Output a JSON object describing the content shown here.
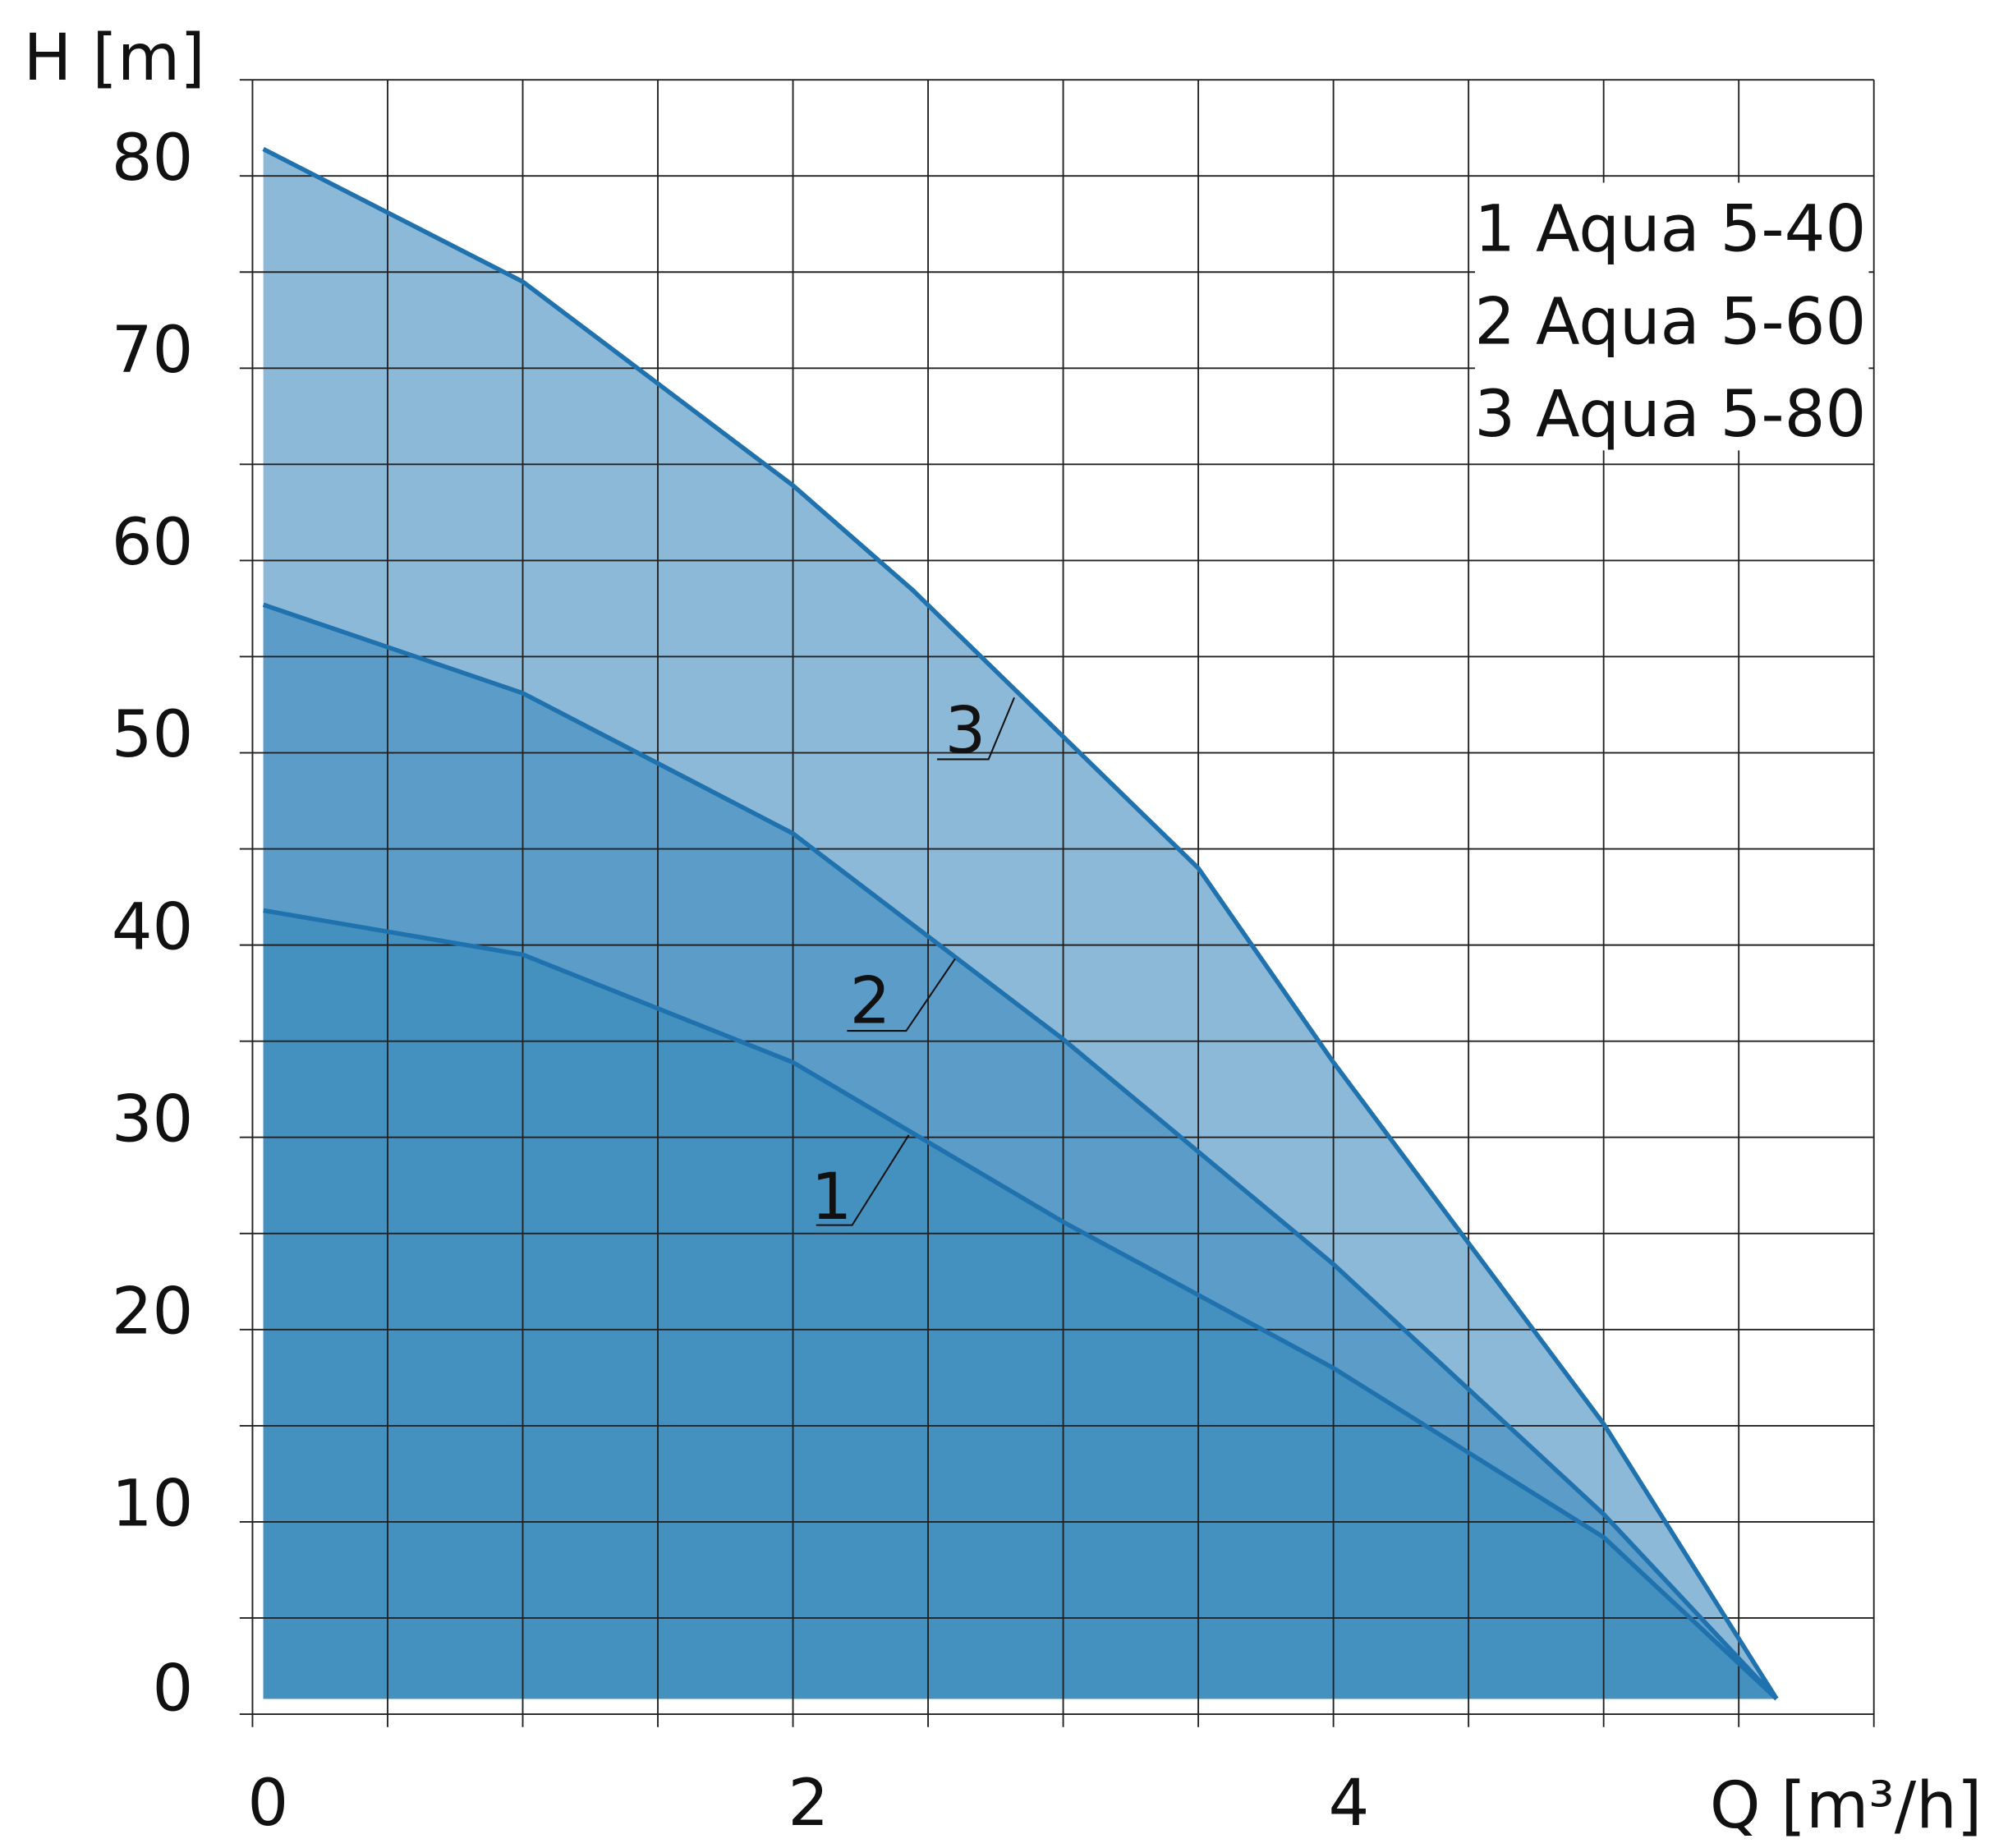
{
  "chart_data": {
    "type": "area",
    "xlabel": "Q [m³/h]",
    "ylabel": "H [m]",
    "xlim": [
      0,
      6
    ],
    "ylim": [
      0,
      85
    ],
    "x_ticks": [
      0,
      2,
      4
    ],
    "y_ticks": [
      0,
      10,
      20,
      30,
      40,
      50,
      60,
      70,
      80
    ],
    "grid": true,
    "legend_position": "top-right",
    "legend": [
      "1 Aqua 5-40",
      "2 Aqua 5-60",
      "3 Aqua 5-80"
    ],
    "colors": {
      "line": "#1f72ad",
      "fill_1": "#4491c0",
      "fill_2": "#5b9dc8",
      "fill_3": "#8db9d8",
      "grid": "#222222"
    },
    "series": [
      {
        "name": "3",
        "points": [
          [
            0.04,
            81.4
          ],
          [
            1.0,
            74.5
          ],
          [
            2.0,
            63.9
          ],
          [
            2.44,
            58.5
          ],
          [
            3.5,
            44.0
          ],
          [
            4.0,
            33.9
          ],
          [
            5.0,
            15.1
          ],
          [
            5.64,
            0.8
          ]
        ]
      },
      {
        "name": "2",
        "points": [
          [
            0.04,
            57.7
          ],
          [
            1.0,
            53.1
          ],
          [
            2.0,
            45.8
          ],
          [
            3.0,
            35.1
          ],
          [
            4.0,
            23.4
          ],
          [
            5.0,
            10.4
          ],
          [
            5.64,
            0.8
          ]
        ]
      },
      {
        "name": "1",
        "points": [
          [
            0.04,
            41.8
          ],
          [
            1.0,
            39.5
          ],
          [
            2.0,
            33.9
          ],
          [
            3.0,
            25.6
          ],
          [
            4.0,
            18.0
          ],
          [
            5.0,
            9.2
          ],
          [
            5.64,
            0.8
          ]
        ]
      }
    ]
  }
}
